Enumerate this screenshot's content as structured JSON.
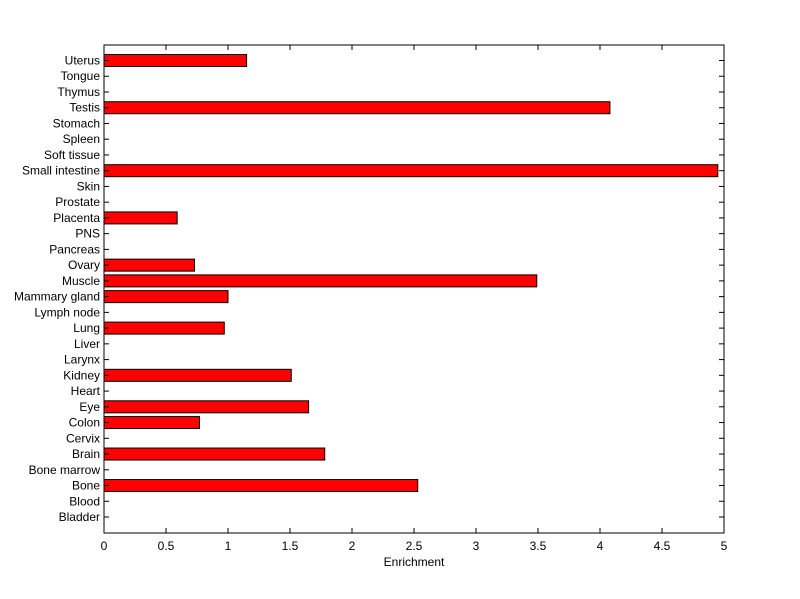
{
  "chart_data": {
    "type": "bar",
    "orientation": "horizontal",
    "title": "",
    "xlabel": "Enrichment",
    "ylabel": "",
    "xlim": [
      0,
      5
    ],
    "xticks": [
      0,
      0.5,
      1,
      1.5,
      2,
      2.5,
      3,
      3.5,
      4,
      4.5,
      5
    ],
    "xtick_labels": [
      "0",
      "0.5",
      "1",
      "1.5",
      "2",
      "2.5",
      "3",
      "3.5",
      "4",
      "4.5",
      "5"
    ],
    "grid": false,
    "legend": "none",
    "bar_color": "#ff0000",
    "bar_edge_color": "#000000",
    "categories": [
      "Bladder",
      "Blood",
      "Bone",
      "Bone marrow",
      "Brain",
      "Cervix",
      "Colon",
      "Eye",
      "Heart",
      "Kidney",
      "Larynx",
      "Liver",
      "Lung",
      "Lymph node",
      "Mammary gland",
      "Muscle",
      "Ovary",
      "Pancreas",
      "PNS",
      "Placenta",
      "Prostate",
      "Skin",
      "Small intestine",
      "Soft tissue",
      "Spleen",
      "Stomach",
      "Testis",
      "Thymus",
      "Tongue",
      "Uterus"
    ],
    "values": [
      0,
      0,
      2.53,
      0,
      1.78,
      0,
      0.77,
      1.65,
      0,
      1.51,
      0,
      0,
      0.97,
      0,
      1.0,
      3.49,
      0.73,
      0,
      0,
      0.59,
      0,
      0,
      4.95,
      0,
      0,
      0,
      4.08,
      0,
      0,
      1.15
    ]
  }
}
